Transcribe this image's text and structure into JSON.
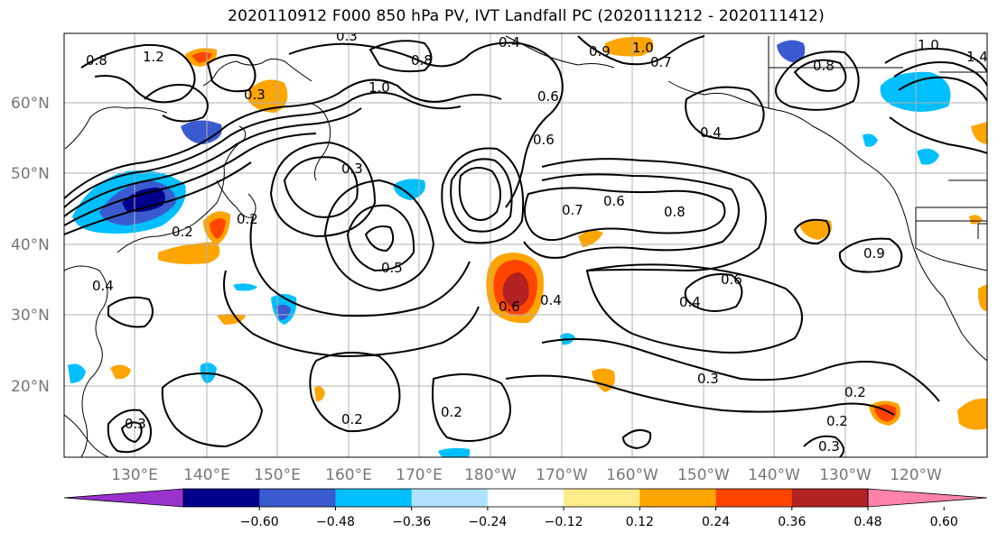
{
  "title": "2020110912 F000 850 hPa PV, IVT Landfall PC (2020111212 - 2020111412)",
  "lat_labels": [
    "60°N",
    "50°N",
    "40°N",
    "30°N",
    "20°N"
  ],
  "lon_labels": [
    "130°E",
    "140°E",
    "150°E",
    "160°E",
    "170°E",
    "180°W",
    "170°W",
    "160°W",
    "150°W",
    "140°W",
    "130°W",
    "120°W"
  ],
  "colorbar": {
    "colors": [
      "#9932cc",
      "#00008b",
      "#3a5bcf",
      "#00bfff",
      "#b0e2ff",
      "#ffffff",
      "#ffec8b",
      "#ffa500",
      "#ff4500",
      "#b22222",
      "#ff82ab"
    ],
    "tick_labels": [
      "−0.60",
      "−0.48",
      "−0.36",
      "−0.24",
      "−0.12",
      "0.12",
      "0.24",
      "0.36",
      "0.48",
      "0.60"
    ]
  },
  "contour_labels": [
    "1.2",
    "0.8",
    "0.3",
    "0.4",
    "0.9",
    "1.0",
    "0.7",
    "1.0",
    "1.4",
    "0.8",
    "0.6",
    "0.3",
    "1.0",
    "0.8",
    "0.4",
    "0.3",
    "0.6",
    "0.7",
    "0.8",
    "0.5",
    "0.2",
    "0.2",
    "0.6",
    "0.4",
    "0.6",
    "0.6",
    "0.4",
    "0.3",
    "0.2",
    "0.2",
    "0.3",
    "0.2",
    "0.2",
    "0.3",
    "0.4",
    "0.9"
  ]
}
